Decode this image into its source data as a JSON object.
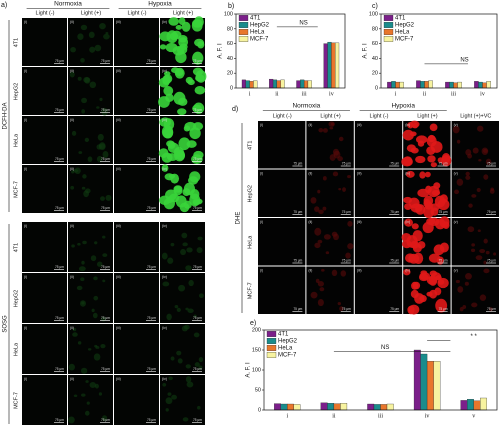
{
  "panel_a": {
    "label": "a)",
    "groups": [
      "Normoxia",
      "Hypoxia"
    ],
    "conditions": [
      "Light (-)",
      "Light (+)",
      "Light (-)",
      "Light (+)"
    ],
    "columns": [
      "(i)",
      "(ii)",
      "(iii)",
      "(iv)"
    ],
    "probes": [
      {
        "name": "DCFH-DA",
        "rows": [
          "4T1",
          "HepG2",
          "HeLa",
          "MCF-7"
        ]
      },
      {
        "name": "SOSG",
        "rows": [
          "4T1",
          "HepG2",
          "HeLa",
          "MCF-7"
        ]
      }
    ],
    "scale_bar": "75 μm"
  },
  "panel_d": {
    "label": "d)",
    "groups": [
      "Normoxia",
      "Hypoxia"
    ],
    "conditions": [
      "Light (-)",
      "Light (+)",
      "Light (-)",
      "Light (+)",
      "Light (+)+VC"
    ],
    "columns": [
      "(i)",
      "(ii)",
      "(iii)",
      "(iv)",
      "(v)"
    ],
    "probe": "DHE",
    "rows": [
      "4T1",
      "HepG2",
      "HeLa",
      "MCF-7"
    ],
    "scale_bar": "75 μm"
  },
  "chart_data": [
    {
      "type": "bar",
      "label": "b)",
      "y_label": "A. F. I",
      "categories": [
        "i",
        "ii",
        "iii",
        "iv"
      ],
      "series": [
        {
          "name": "4T1",
          "color": "#7b1f8a",
          "values": [
            11,
            12,
            10,
            60
          ]
        },
        {
          "name": "HepG2",
          "color": "#1a8c8c",
          "values": [
            10,
            11,
            11,
            62
          ]
        },
        {
          "name": "HeLa",
          "color": "#e8762c",
          "values": [
            9,
            10,
            10,
            61
          ]
        },
        {
          "name": "MCF-7",
          "color": "#f7f3a0",
          "values": [
            10,
            11,
            10,
            61
          ]
        }
      ],
      "ylim": [
        0,
        100
      ],
      "yticks": [
        0,
        20,
        40,
        60,
        80,
        100
      ],
      "annotations": [
        "NS"
      ]
    },
    {
      "type": "bar",
      "label": "c)",
      "y_label": "A. F. I",
      "categories": [
        "i",
        "ii",
        "iii",
        "iv"
      ],
      "series": [
        {
          "name": "4T1",
          "color": "#7b1f8a",
          "values": [
            8,
            10,
            8,
            9
          ]
        },
        {
          "name": "HepG2",
          "color": "#1a8c8c",
          "values": [
            9,
            9,
            8,
            8
          ]
        },
        {
          "name": "HeLa",
          "color": "#e8762c",
          "values": [
            8,
            9,
            7,
            7
          ]
        },
        {
          "name": "MCF-7",
          "color": "#f7f3a0",
          "values": [
            8,
            10,
            8,
            9
          ]
        }
      ],
      "ylim": [
        0,
        100
      ],
      "yticks": [
        0,
        20,
        40,
        60,
        80,
        100
      ],
      "annotations": [
        "NS"
      ]
    },
    {
      "type": "bar",
      "label": "e)",
      "y_label": "A. F. I",
      "categories": [
        "i",
        "ii",
        "iii",
        "iv",
        "v"
      ],
      "series": [
        {
          "name": "4T1",
          "color": "#7b1f8a",
          "values": [
            16,
            18,
            15,
            150,
            24
          ]
        },
        {
          "name": "HepG2",
          "color": "#1a8c8c",
          "values": [
            15,
            17,
            14,
            140,
            27
          ]
        },
        {
          "name": "HeLa",
          "color": "#e8762c",
          "values": [
            15,
            16,
            14,
            122,
            23
          ]
        },
        {
          "name": "MCF-7",
          "color": "#f7f3a0",
          "values": [
            14,
            17,
            15,
            122,
            30
          ]
        }
      ],
      "ylim": [
        0,
        200
      ],
      "yticks": [
        0,
        50,
        100,
        150,
        200
      ],
      "annotations": [
        "NS",
        "* *"
      ]
    }
  ]
}
